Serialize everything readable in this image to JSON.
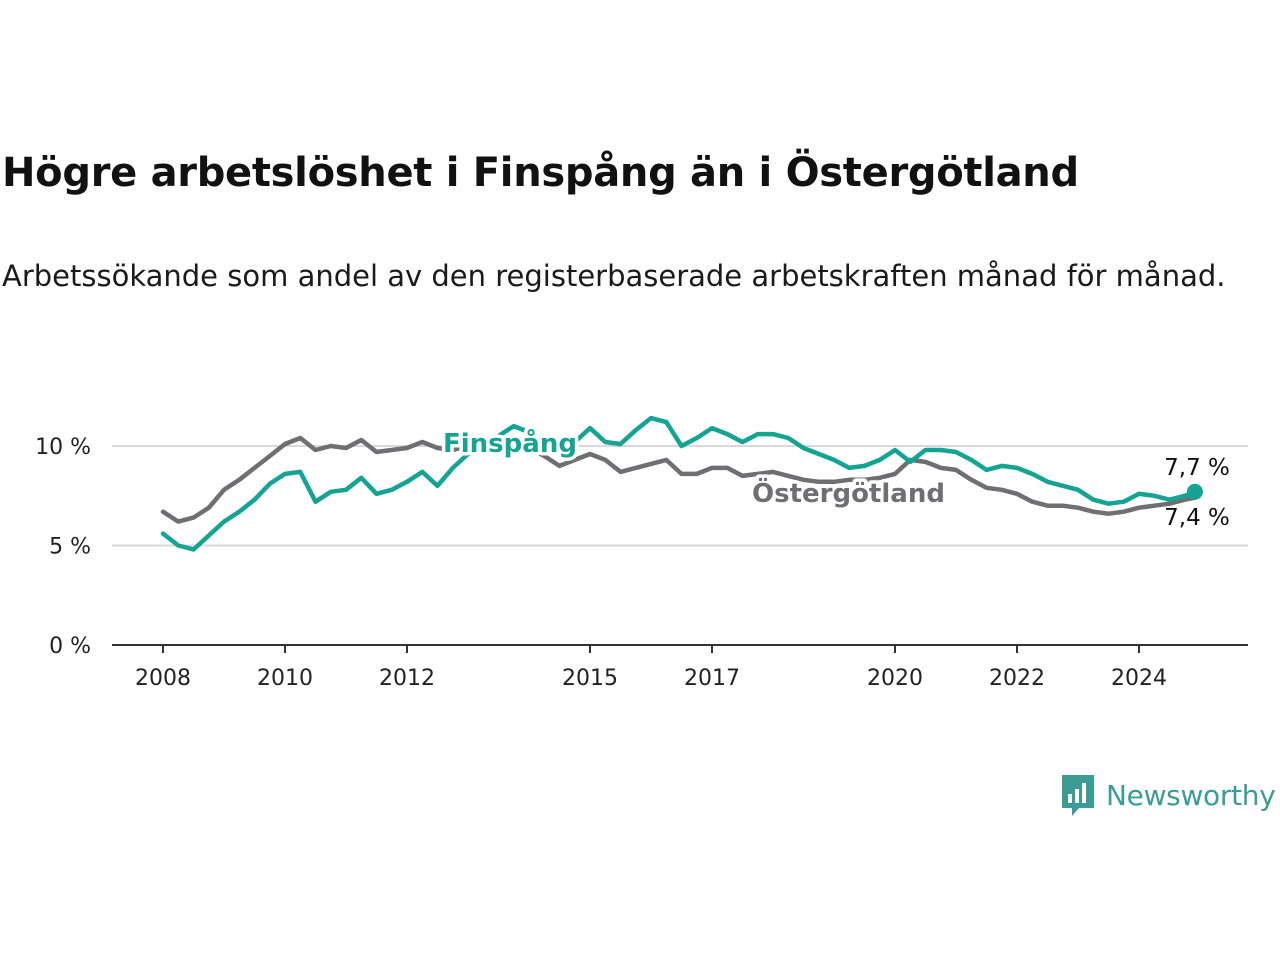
{
  "header": {
    "title": "Högre arbetslöshet i Finspång än i Östergötland",
    "subtitle": "Arbetssökande som andel av den registerbaserade arbetskraften månad för månad."
  },
  "brand": {
    "name": "Newsworthy",
    "icon": "newsworthy-logo-icon",
    "color": "#3a9c94"
  },
  "chart_data": {
    "type": "line",
    "title": "Högre arbetslöshet i Finspång än i Östergötland",
    "subtitle": "Arbetssökande som andel av den registerbaserade arbetskraften månad för månad.",
    "xlabel": "",
    "ylabel": "",
    "x_ticks": [
      "2008",
      "2010",
      "2012",
      "2015",
      "2017",
      "2020",
      "2022",
      "2024"
    ],
    "y_ticks": [
      "0 %",
      "5 %",
      "10 %"
    ],
    "ylim": [
      0,
      12
    ],
    "grid": "horizontal",
    "series": [
      {
        "name": "Östergötland",
        "color": "#6e6e73",
        "end_label": "7,4 %",
        "points": [
          [
            "2008-01",
            6.7
          ],
          [
            "2008-04",
            6.2
          ],
          [
            "2008-07",
            6.4
          ],
          [
            "2008-10",
            6.9
          ],
          [
            "2009-01",
            7.8
          ],
          [
            "2009-04",
            8.3
          ],
          [
            "2009-07",
            8.9
          ],
          [
            "2009-10",
            9.5
          ],
          [
            "2010-01",
            10.1
          ],
          [
            "2010-04",
            10.4
          ],
          [
            "2010-07",
            9.8
          ],
          [
            "2010-10",
            10.0
          ],
          [
            "2011-01",
            9.9
          ],
          [
            "2011-04",
            10.3
          ],
          [
            "2011-07",
            9.7
          ],
          [
            "2011-10",
            9.8
          ],
          [
            "2012-01",
            9.9
          ],
          [
            "2012-04",
            10.2
          ],
          [
            "2012-07",
            9.9
          ],
          [
            "2012-10",
            9.8
          ],
          [
            "2013-01",
            10.0
          ],
          [
            "2013-04",
            10.1
          ],
          [
            "2013-07",
            10.0
          ],
          [
            "2013-10",
            9.9
          ],
          [
            "2014-01",
            9.9
          ],
          [
            "2014-04",
            9.5
          ],
          [
            "2014-07",
            9.0
          ],
          [
            "2014-10",
            9.3
          ],
          [
            "2015-01",
            9.6
          ],
          [
            "2015-04",
            9.3
          ],
          [
            "2015-07",
            8.7
          ],
          [
            "2015-10",
            8.9
          ],
          [
            "2016-01",
            9.1
          ],
          [
            "2016-04",
            9.3
          ],
          [
            "2016-07",
            8.6
          ],
          [
            "2016-10",
            8.6
          ],
          [
            "2017-01",
            8.9
          ],
          [
            "2017-04",
            8.9
          ],
          [
            "2017-07",
            8.5
          ],
          [
            "2017-10",
            8.6
          ],
          [
            "2018-01",
            8.7
          ],
          [
            "2018-04",
            8.5
          ],
          [
            "2018-07",
            8.3
          ],
          [
            "2018-10",
            8.2
          ],
          [
            "2019-01",
            8.2
          ],
          [
            "2019-04",
            8.3
          ],
          [
            "2019-07",
            8.3
          ],
          [
            "2019-10",
            8.4
          ],
          [
            "2020-01",
            8.6
          ],
          [
            "2020-04",
            9.3
          ],
          [
            "2020-07",
            9.2
          ],
          [
            "2020-10",
            8.9
          ],
          [
            "2021-01",
            8.8
          ],
          [
            "2021-04",
            8.3
          ],
          [
            "2021-07",
            7.9
          ],
          [
            "2021-10",
            7.8
          ],
          [
            "2022-01",
            7.6
          ],
          [
            "2022-04",
            7.2
          ],
          [
            "2022-07",
            7.0
          ],
          [
            "2022-10",
            7.0
          ],
          [
            "2023-01",
            6.9
          ],
          [
            "2023-04",
            6.7
          ],
          [
            "2023-07",
            6.6
          ],
          [
            "2023-10",
            6.7
          ],
          [
            "2024-01",
            6.9
          ],
          [
            "2024-04",
            7.0
          ],
          [
            "2024-07",
            7.1
          ],
          [
            "2024-10",
            7.3
          ],
          [
            "2024-12",
            7.4
          ]
        ]
      },
      {
        "name": "Finspång",
        "color": "#14a493",
        "end_label": "7,7 %",
        "points": [
          [
            "2008-01",
            5.6
          ],
          [
            "2008-04",
            5.0
          ],
          [
            "2008-07",
            4.8
          ],
          [
            "2008-10",
            5.5
          ],
          [
            "2009-01",
            6.2
          ],
          [
            "2009-04",
            6.7
          ],
          [
            "2009-07",
            7.3
          ],
          [
            "2009-10",
            8.1
          ],
          [
            "2010-01",
            8.6
          ],
          [
            "2010-04",
            8.7
          ],
          [
            "2010-07",
            7.2
          ],
          [
            "2010-10",
            7.7
          ],
          [
            "2011-01",
            7.8
          ],
          [
            "2011-04",
            8.4
          ],
          [
            "2011-07",
            7.6
          ],
          [
            "2011-10",
            7.8
          ],
          [
            "2012-01",
            8.2
          ],
          [
            "2012-04",
            8.7
          ],
          [
            "2012-07",
            8.0
          ],
          [
            "2012-10",
            8.9
          ],
          [
            "2013-01",
            9.6
          ],
          [
            "2013-04",
            10.1
          ],
          [
            "2013-07",
            10.5
          ],
          [
            "2013-10",
            11.0
          ],
          [
            "2014-01",
            10.7
          ],
          [
            "2014-04",
            10.1
          ],
          [
            "2014-07",
            9.8
          ],
          [
            "2014-10",
            10.2
          ],
          [
            "2015-01",
            10.9
          ],
          [
            "2015-04",
            10.2
          ],
          [
            "2015-07",
            10.1
          ],
          [
            "2015-10",
            10.8
          ],
          [
            "2016-01",
            11.4
          ],
          [
            "2016-04",
            11.2
          ],
          [
            "2016-07",
            10.0
          ],
          [
            "2016-10",
            10.4
          ],
          [
            "2017-01",
            10.9
          ],
          [
            "2017-04",
            10.6
          ],
          [
            "2017-07",
            10.2
          ],
          [
            "2017-10",
            10.6
          ],
          [
            "2018-01",
            10.6
          ],
          [
            "2018-04",
            10.4
          ],
          [
            "2018-07",
            9.9
          ],
          [
            "2018-10",
            9.6
          ],
          [
            "2019-01",
            9.3
          ],
          [
            "2019-04",
            8.9
          ],
          [
            "2019-07",
            9.0
          ],
          [
            "2019-10",
            9.3
          ],
          [
            "2020-01",
            9.8
          ],
          [
            "2020-04",
            9.2
          ],
          [
            "2020-07",
            9.8
          ],
          [
            "2020-10",
            9.8
          ],
          [
            "2021-01",
            9.7
          ],
          [
            "2021-04",
            9.3
          ],
          [
            "2021-07",
            8.8
          ],
          [
            "2021-10",
            9.0
          ],
          [
            "2022-01",
            8.9
          ],
          [
            "2022-04",
            8.6
          ],
          [
            "2022-07",
            8.2
          ],
          [
            "2022-10",
            8.0
          ],
          [
            "2023-01",
            7.8
          ],
          [
            "2023-04",
            7.3
          ],
          [
            "2023-07",
            7.1
          ],
          [
            "2023-10",
            7.2
          ],
          [
            "2024-01",
            7.6
          ],
          [
            "2024-04",
            7.5
          ],
          [
            "2024-07",
            7.3
          ],
          [
            "2024-10",
            7.5
          ],
          [
            "2024-12",
            7.7
          ]
        ]
      }
    ]
  }
}
